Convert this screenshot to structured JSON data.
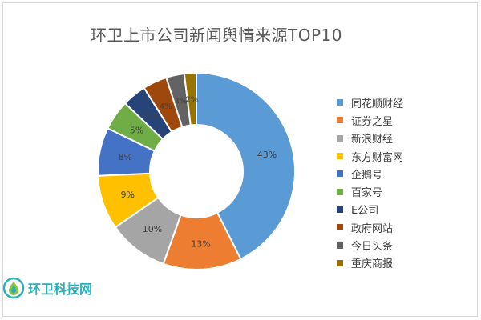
{
  "chart_data": {
    "type": "pie",
    "variant": "donut",
    "title": "环卫上市公司新闻舆情来源TOP10",
    "legend_position": "right",
    "slices": [
      {
        "label": "同花顺财经",
        "value": 43,
        "value_label": "43%",
        "color": "#5b9bd5"
      },
      {
        "label": "证券之星",
        "value": 13,
        "value_label": "13%",
        "color": "#ed7d31"
      },
      {
        "label": "新浪财经",
        "value": 10,
        "value_label": "10%",
        "color": "#a5a5a5"
      },
      {
        "label": "东方财富网",
        "value": 9,
        "value_label": "9%",
        "color": "#ffc000"
      },
      {
        "label": "企鹅号",
        "value": 8,
        "value_label": "8%",
        "color": "#4472c4"
      },
      {
        "label": "百家号",
        "value": 5,
        "value_label": "5%",
        "color": "#70ad47"
      },
      {
        "label": "E公司",
        "value": 4,
        "value_label": "4%",
        "color": "#264478"
      },
      {
        "label": "政府网站",
        "value": 4,
        "value_label": "4%",
        "color": "#9e480e"
      },
      {
        "label": "今日头条",
        "value": 3,
        "value_label": "3%",
        "color": "#636363"
      },
      {
        "label": "重庆商报",
        "value": 2,
        "value_label": "2%",
        "color": "#997300"
      }
    ]
  },
  "watermark": {
    "text": "环卫科技网"
  }
}
